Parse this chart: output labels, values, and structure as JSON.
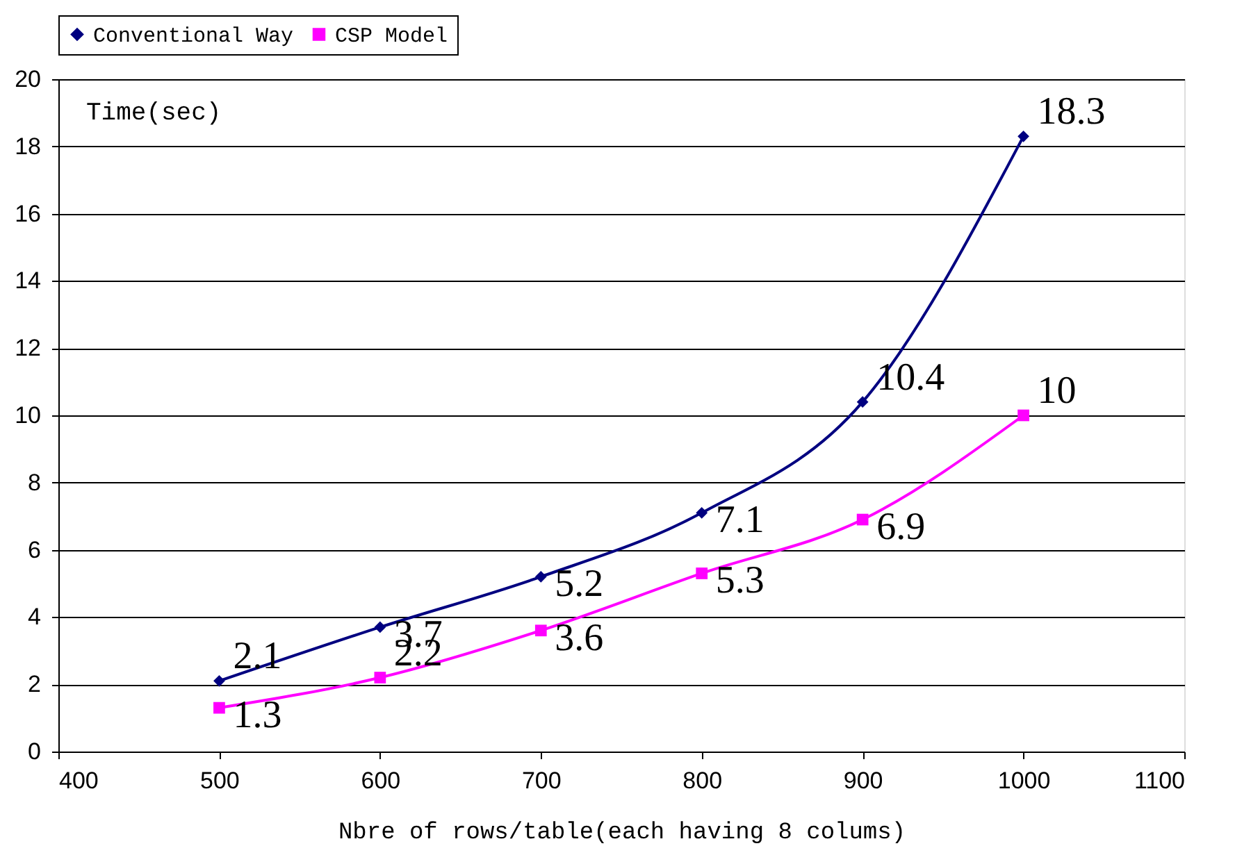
{
  "chart_data": {
    "type": "line",
    "xlabel": "Nbre of rows/table(each having 8 colums)",
    "ylabel": "Time(sec)",
    "x": [
      500,
      600,
      700,
      800,
      900,
      1000
    ],
    "series": [
      {
        "name": "Conventional Way",
        "color": "#000080",
        "marker": "diamond",
        "values": [
          2.1,
          3.7,
          5.2,
          7.1,
          10.4,
          18.3
        ]
      },
      {
        "name": "CSP Model",
        "color": "#ff00ff",
        "marker": "square",
        "values": [
          1.3,
          2.2,
          3.6,
          5.3,
          6.9,
          10
        ]
      }
    ],
    "xlim": [
      400,
      1100
    ],
    "xticks": [
      400,
      500,
      600,
      700,
      800,
      900,
      1000,
      1100
    ],
    "ylim": [
      0,
      20
    ],
    "yticks": [
      0,
      2,
      4,
      6,
      8,
      10,
      12,
      14,
      16,
      18,
      20
    ],
    "grid": "y",
    "legend": "top",
    "data_labels": true,
    "line_style": "solid"
  }
}
